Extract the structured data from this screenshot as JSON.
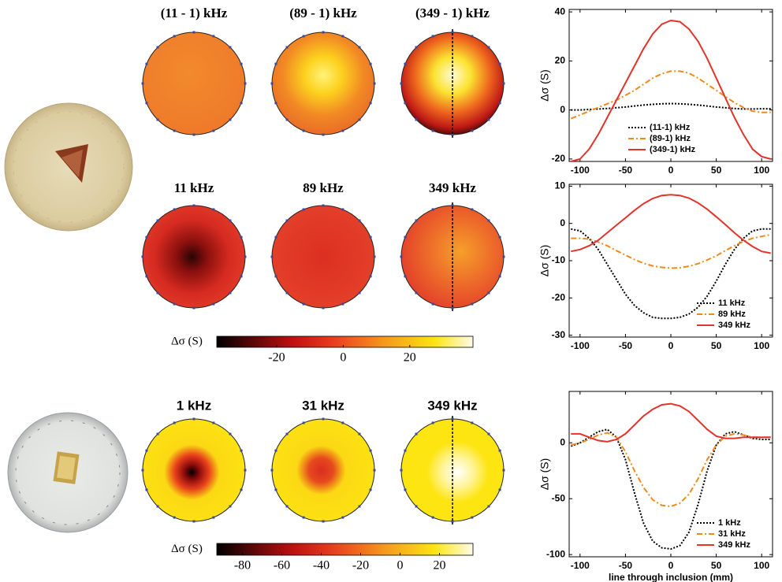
{
  "chart_data": [
    {
      "type": "line",
      "ylabel": "Δσ (S)",
      "xlim": [
        -112,
        112
      ],
      "xticks": [
        -100,
        -50,
        0,
        50,
        100
      ],
      "ylim": [
        -21,
        41
      ],
      "yticks": [
        -20,
        0,
        20,
        40
      ],
      "legend": "lower center",
      "x": [
        -110,
        -100,
        -90,
        -80,
        -70,
        -60,
        -50,
        -40,
        -30,
        -20,
        -10,
        0,
        10,
        20,
        30,
        40,
        50,
        60,
        70,
        80,
        90,
        100,
        110
      ],
      "series": [
        {
          "name": "(11-1) kHz",
          "color": "#000000",
          "dash": "dotted",
          "values": [
            0,
            0,
            0.2,
            0.4,
            0.6,
            0.9,
            1.2,
            1.6,
            2,
            2.3,
            2.5,
            2.6,
            2.5,
            2.3,
            2,
            1.6,
            1.2,
            0.9,
            0.6,
            0.4,
            0.4,
            0.5,
            0.5
          ]
        },
        {
          "name": "(89-1) kHz",
          "color": "#ee8a1c",
          "dash": "dashdot",
          "values": [
            -3.5,
            -2,
            -0.5,
            1,
            2.5,
            4,
            6,
            8,
            10.5,
            13,
            14.8,
            15.8,
            15.8,
            15,
            13,
            10.5,
            8,
            5.5,
            3,
            1,
            -0.5,
            -1,
            -1
          ]
        },
        {
          "name": "(349-1) kHz",
          "color": "#e2342a",
          "dash": "solid",
          "values": [
            -21,
            -20,
            -16,
            -10,
            -3,
            4,
            11,
            18,
            25,
            31,
            35,
            36.5,
            36,
            33,
            28,
            21,
            13,
            5,
            -3,
            -10,
            -16,
            -19,
            -20
          ]
        }
      ]
    },
    {
      "type": "line",
      "ylabel": "Δσ (S)",
      "xlim": [
        -112,
        112
      ],
      "xticks": [
        -100,
        -50,
        0,
        50,
        100
      ],
      "ylim": [
        -30.5,
        10.5
      ],
      "yticks": [
        -30,
        -20,
        -10,
        0,
        10
      ],
      "legend": "lower right",
      "x": [
        -110,
        -100,
        -90,
        -80,
        -70,
        -60,
        -50,
        -40,
        -30,
        -20,
        -10,
        0,
        10,
        20,
        30,
        40,
        50,
        60,
        70,
        80,
        90,
        100,
        110
      ],
      "series": [
        {
          "name": "11 kHz",
          "color": "#000000",
          "dash": "dotted",
          "values": [
            -1.5,
            -2,
            -4,
            -7,
            -11,
            -15,
            -19,
            -22,
            -24,
            -25.2,
            -25.5,
            -25.5,
            -25.2,
            -24.3,
            -22.5,
            -19.5,
            -15.5,
            -11,
            -7,
            -4,
            -2,
            -1.5,
            -1.5
          ]
        },
        {
          "name": "89 kHz",
          "color": "#ee8a1c",
          "dash": "dashdot",
          "values": [
            -4,
            -4,
            -4.2,
            -5,
            -6,
            -7.3,
            -8.5,
            -9.7,
            -10.7,
            -11.4,
            -11.8,
            -12,
            -11.9,
            -11.5,
            -10.8,
            -9.8,
            -8.7,
            -7.3,
            -6,
            -4.8,
            -4,
            -3.5,
            -3
          ]
        },
        {
          "name": "349 kHz",
          "color": "#e2342a",
          "dash": "solid",
          "values": [
            -7.5,
            -7,
            -6,
            -4.5,
            -2.5,
            -0.5,
            1.5,
            3.5,
            5.3,
            6.7,
            7.5,
            7.7,
            7.5,
            6.8,
            5.5,
            3.8,
            1.8,
            -0.3,
            -2.5,
            -4.5,
            -6.2,
            -7.5,
            -8
          ]
        }
      ]
    },
    {
      "type": "line",
      "ylabel": "Δσ (S)",
      "xlabel": "line through inclusion (mm)",
      "xlim": [
        -112,
        112
      ],
      "xticks": [
        -100,
        -50,
        0,
        50,
        100
      ],
      "ylim": [
        -102,
        46
      ],
      "yticks": [
        -100,
        -50,
        0
      ],
      "legend": "lower right",
      "x": [
        -110,
        -100,
        -90,
        -80,
        -70,
        -60,
        -50,
        -40,
        -30,
        -20,
        -10,
        0,
        10,
        20,
        30,
        40,
        50,
        60,
        70,
        80,
        90,
        100,
        110
      ],
      "series": [
        {
          "name": "1 kHz",
          "color": "#000000",
          "dash": "dotted",
          "values": [
            -3,
            0,
            5,
            10,
            12,
            5,
            -15,
            -45,
            -72,
            -88,
            -94,
            -95,
            -92,
            -80,
            -55,
            -25,
            -2,
            8,
            10,
            7,
            4,
            3,
            3
          ]
        },
        {
          "name": "31 kHz",
          "color": "#ee8a1c",
          "dash": "dashdot",
          "values": [
            -2,
            0,
            3,
            7,
            9,
            5,
            -8,
            -25,
            -40,
            -51,
            -56,
            -57,
            -54,
            -46,
            -32,
            -15,
            -2,
            6,
            8,
            7,
            5,
            5,
            5
          ]
        },
        {
          "name": "349 kHz",
          "color": "#e2342a",
          "dash": "solid",
          "values": [
            8,
            8,
            5,
            2,
            1,
            3,
            8,
            16,
            24,
            30,
            34,
            35,
            33,
            28,
            20,
            12,
            6,
            4,
            4,
            5,
            5,
            5,
            5
          ]
        }
      ]
    },
    {
      "type": "colorbar",
      "label": "Δσ (S)",
      "xlim": [
        -38,
        39
      ],
      "xticks": [
        -20,
        0,
        20
      ]
    },
    {
      "type": "colorbar",
      "label": "Δσ (S)",
      "xlim": [
        -93,
        37
      ],
      "xticks": [
        -80,
        -60,
        -40,
        -20,
        0,
        20
      ]
    }
  ],
  "maps": [
    {
      "title": "(11 - 1) kHz"
    },
    {
      "title": "(89 - 1) kHz"
    },
    {
      "title": "(349 - 1) kHz"
    },
    {
      "title": "11 kHz"
    },
    {
      "title": "89 kHz"
    },
    {
      "title": "349 kHz"
    },
    {
      "title": "1 kHz"
    },
    {
      "title": "31 kHz"
    },
    {
      "title": "349 kHz"
    }
  ]
}
